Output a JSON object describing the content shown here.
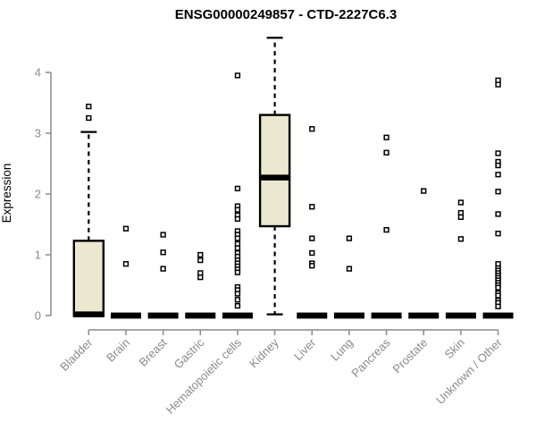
{
  "chart_data": {
    "type": "boxplot",
    "title": "ENSG00000249857 - CTD-2227C6.3",
    "ylabel": "Expression",
    "xlabel": "",
    "ylim": [
      0,
      4.6
    ],
    "yticks": [
      0,
      1,
      2,
      3,
      4
    ],
    "grid": false,
    "legend": "none",
    "colors": {
      "box_fill": "#ece8d0",
      "box_stroke": "#000000",
      "median": "#000000",
      "whisker": "#000000",
      "outlier_stroke": "#000000",
      "outlier_fill": "#ffffff",
      "axis": "#8a8a8a",
      "tick_label": "#8a8a8a",
      "title": "#000000"
    },
    "categories": [
      "Bladder",
      "Brain",
      "Breast",
      "Gastric",
      "Hematopoietic cells",
      "Kidney",
      "Liver",
      "Lung",
      "Pancreas",
      "Prostate",
      "Skin",
      "Unknown / Other"
    ],
    "boxes": [
      {
        "category": "Bladder",
        "q1": 0,
        "median": 0.02,
        "q3": 1.23,
        "whisker_low": 0,
        "whisker_high": 3.02,
        "outliers": [
          3.44,
          3.25
        ]
      },
      {
        "category": "Brain",
        "q1": 0,
        "median": 0,
        "q3": 0,
        "whisker_low": 0,
        "whisker_high": 0,
        "outliers": [
          1.43,
          0.85
        ]
      },
      {
        "category": "Breast",
        "q1": 0,
        "median": 0,
        "q3": 0,
        "whisker_low": 0,
        "whisker_high": 0,
        "outliers": [
          1.33,
          1.04,
          0.77
        ]
      },
      {
        "category": "Gastric",
        "q1": 0,
        "median": 0,
        "q3": 0,
        "whisker_low": 0,
        "whisker_high": 0,
        "outliers": [
          1.0,
          0.91,
          0.7,
          0.63
        ]
      },
      {
        "category": "Hematopoietic cells",
        "q1": 0,
        "median": 0,
        "q3": 0,
        "whisker_low": 0,
        "whisker_high": 0,
        "outliers": [
          3.95,
          2.09,
          1.8,
          1.74,
          1.65,
          1.59,
          1.39,
          1.33,
          1.27,
          1.18,
          1.11,
          1.03,
          0.97,
          0.91,
          0.86,
          0.81,
          0.76,
          0.71,
          0.47,
          0.42,
          0.36,
          0.26,
          0.16
        ]
      },
      {
        "category": "Kidney",
        "q1": 1.47,
        "median": 2.27,
        "q3": 3.3,
        "whisker_low": 0.02,
        "whisker_high": 4.57,
        "outliers": []
      },
      {
        "category": "Liver",
        "q1": 0,
        "median": 0,
        "q3": 0,
        "whisker_low": 0,
        "whisker_high": 0,
        "outliers": [
          3.07,
          1.79,
          1.27,
          1.03,
          0.86,
          0.82
        ]
      },
      {
        "category": "Lung",
        "q1": 0,
        "median": 0,
        "q3": 0,
        "whisker_low": 0,
        "whisker_high": 0,
        "outliers": [
          1.27,
          0.77
        ]
      },
      {
        "category": "Pancreas",
        "q1": 0,
        "median": 0,
        "q3": 0,
        "whisker_low": 0,
        "whisker_high": 0,
        "outliers": [
          2.93,
          2.68,
          1.41
        ]
      },
      {
        "category": "Prostate",
        "q1": 0,
        "median": 0,
        "q3": 0,
        "whisker_low": 0,
        "whisker_high": 0,
        "outliers": [
          2.05
        ]
      },
      {
        "category": "Skin",
        "q1": 0,
        "median": 0,
        "q3": 0,
        "whisker_low": 0,
        "whisker_high": 0,
        "outliers": [
          1.86,
          1.69,
          1.62,
          1.26
        ]
      },
      {
        "category": "Unknown / Other",
        "q1": 0,
        "median": 0,
        "q3": 0,
        "whisker_low": 0,
        "whisker_high": 0,
        "outliers": [
          3.87,
          3.8,
          2.67,
          2.53,
          2.47,
          2.32,
          2.04,
          1.67,
          1.35,
          0.85,
          0.78,
          0.74,
          0.7,
          0.66,
          0.62,
          0.58,
          0.54,
          0.5,
          0.46,
          0.37,
          0.33,
          0.25,
          0.21,
          0.15
        ]
      }
    ]
  }
}
